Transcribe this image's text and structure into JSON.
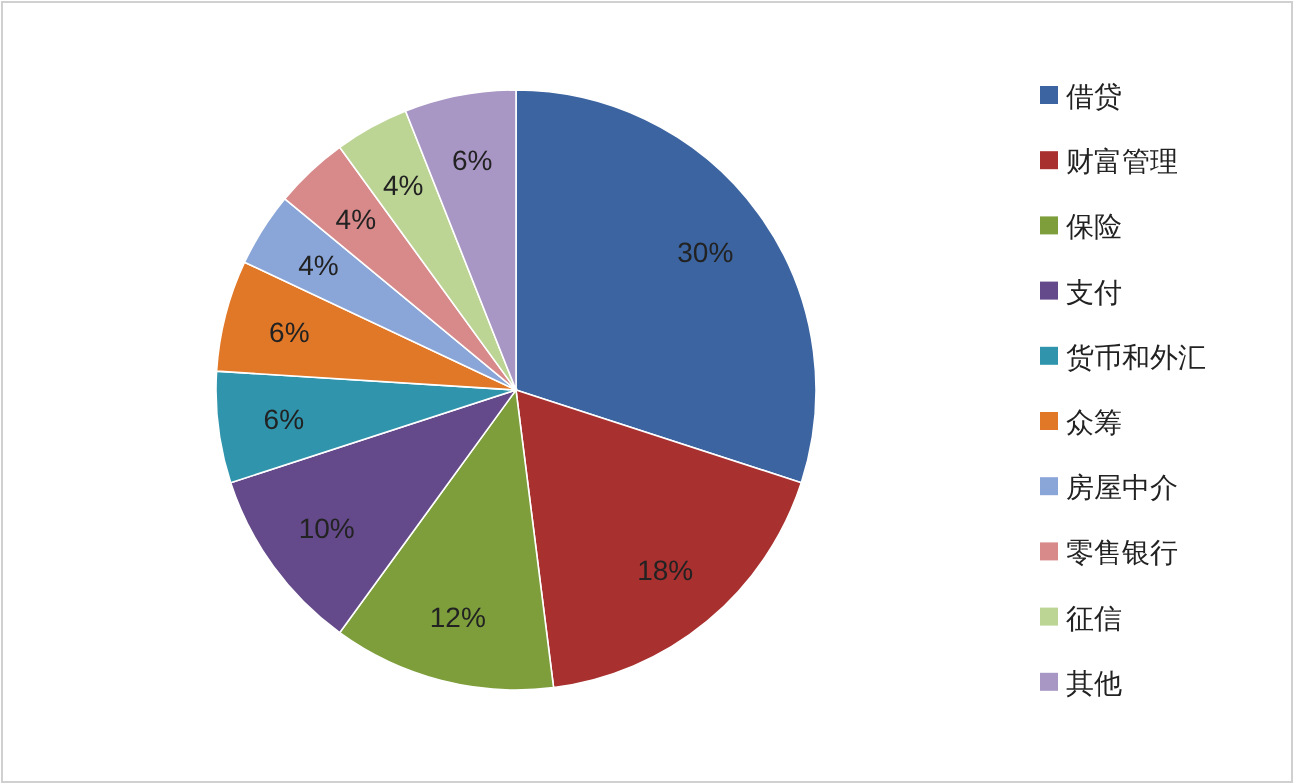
{
  "chart_data": {
    "type": "pie",
    "categories": [
      "借贷",
      "财富管理",
      "保险",
      "支付",
      "货币和外汇",
      "众筹",
      "房屋中介",
      "零售银行",
      "征信",
      "其他"
    ],
    "values": [
      30,
      18,
      12,
      10,
      6,
      6,
      4,
      4,
      4,
      6
    ],
    "colors": [
      "#3c64a0",
      "#a8302f",
      "#7e9e3c",
      "#644a8a",
      "#2f94ac",
      "#e07828",
      "#8aa6d8",
      "#d88a8a",
      "#bcd494",
      "#a896c4"
    ],
    "value_labels": [
      "30%",
      "18%",
      "12%",
      "10%",
      "6%",
      "6%",
      "4%",
      "4%",
      "4%",
      "6%"
    ],
    "legend": "right"
  }
}
